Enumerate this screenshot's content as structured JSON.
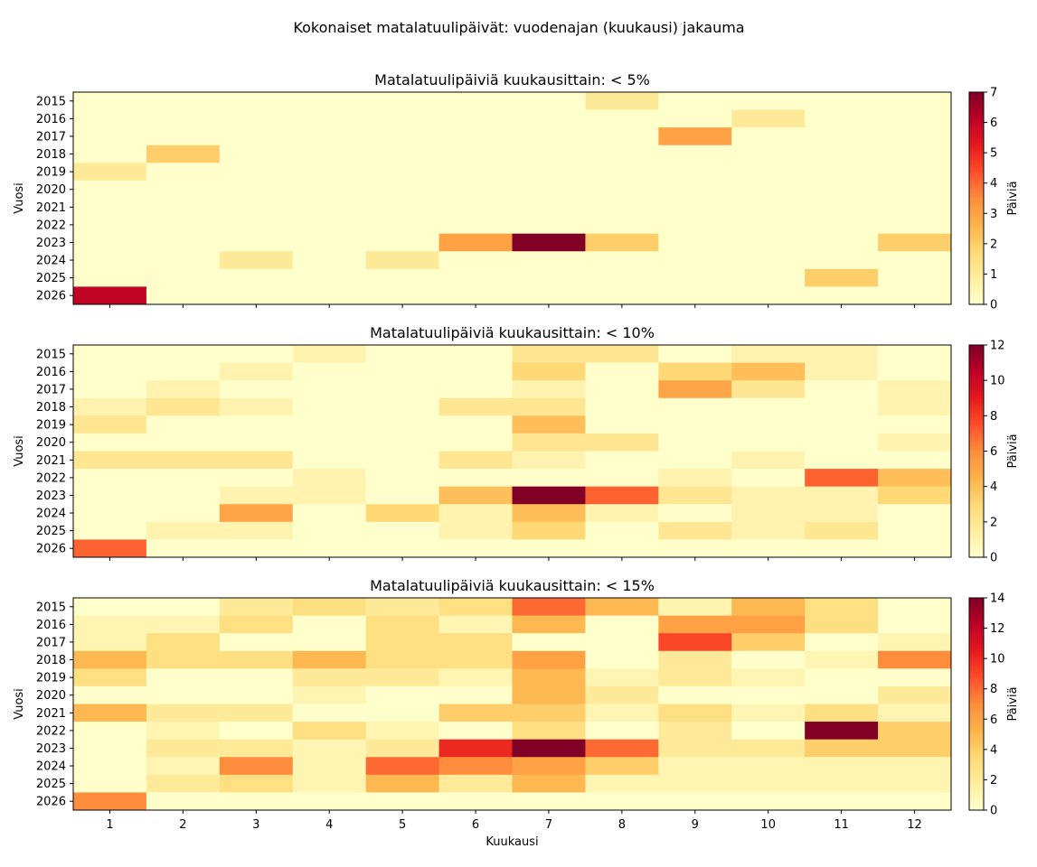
{
  "suptitle": "Kokonaiset matalatuulipäivät: vuodenajan (kuukausi) jakauma",
  "colormap": "YlOrRd",
  "colormap_stops": [
    "#ffffcc",
    "#ffeda0",
    "#fed976",
    "#feb24c",
    "#fd8d3c",
    "#fc4e2a",
    "#e31a1c",
    "#bd0026",
    "#800026"
  ],
  "chart_data": [
    {
      "type": "heatmap",
      "title": "Matalatuulipäiviä kuukausittain: < 5%",
      "ylabel": "Vuosi",
      "xlabel": "",
      "colorbar_label": "Päiviä",
      "x": [
        "1",
        "2",
        "3",
        "4",
        "5",
        "6",
        "7",
        "8",
        "9",
        "10",
        "11",
        "12"
      ],
      "y": [
        "2015",
        "2016",
        "2017",
        "2018",
        "2019",
        "2020",
        "2021",
        "2022",
        "2023",
        "2024",
        "2025",
        "2026"
      ],
      "vmin": 0,
      "vmax": 7,
      "cbar_ticks": [
        "0",
        "1",
        "2",
        "3",
        "4",
        "5",
        "6",
        "7"
      ],
      "values": [
        [
          0,
          0,
          0,
          0,
          0,
          0,
          0,
          1,
          0,
          0,
          0,
          0
        ],
        [
          0,
          0,
          0,
          0,
          0,
          0,
          0,
          0,
          0,
          1,
          0,
          0
        ],
        [
          0,
          0,
          0,
          0,
          0,
          0,
          0,
          0,
          3,
          0,
          0,
          0
        ],
        [
          0,
          2,
          0,
          0,
          0,
          0,
          0,
          0,
          0,
          0,
          0,
          0
        ],
        [
          1,
          0,
          0,
          0,
          0,
          0,
          0,
          0,
          0,
          0,
          0,
          0
        ],
        [
          0,
          0,
          0,
          0,
          0,
          0,
          0,
          0,
          0,
          0,
          0,
          0
        ],
        [
          0,
          0,
          0,
          0,
          0,
          0,
          0,
          0,
          0,
          0,
          0,
          0
        ],
        [
          0,
          0,
          0,
          0,
          0,
          0,
          0,
          0,
          0,
          0,
          0,
          0
        ],
        [
          0,
          0,
          0,
          0,
          0,
          3,
          7,
          2,
          0,
          0,
          0,
          2
        ],
        [
          0,
          0,
          1,
          0,
          1,
          0,
          0,
          0,
          0,
          0,
          0,
          0
        ],
        [
          0,
          0,
          0,
          0,
          0,
          0,
          0,
          0,
          0,
          0,
          2,
          0
        ],
        [
          6,
          0,
          0,
          0,
          0,
          0,
          0,
          0,
          0,
          0,
          0,
          0
        ]
      ]
    },
    {
      "type": "heatmap",
      "title": "Matalatuulipäiviä kuukausittain: < 10%",
      "ylabel": "Vuosi",
      "xlabel": "",
      "colorbar_label": "Päiviä",
      "x": [
        "1",
        "2",
        "3",
        "4",
        "5",
        "6",
        "7",
        "8",
        "9",
        "10",
        "11",
        "12"
      ],
      "y": [
        "2015",
        "2016",
        "2017",
        "2018",
        "2019",
        "2020",
        "2021",
        "2022",
        "2023",
        "2024",
        "2025",
        "2026"
      ],
      "vmin": 0,
      "vmax": 12,
      "cbar_ticks": [
        "0",
        "2",
        "4",
        "6",
        "8",
        "10",
        "12"
      ],
      "values": [
        [
          0,
          0,
          0,
          1,
          0,
          0,
          2,
          2,
          0,
          1,
          1,
          0
        ],
        [
          0,
          0,
          1,
          0,
          0,
          0,
          3,
          0,
          3,
          4,
          1,
          0
        ],
        [
          0,
          1,
          0,
          0,
          0,
          0,
          1,
          0,
          5,
          2,
          0,
          1
        ],
        [
          1,
          2,
          1,
          0,
          0,
          2,
          2,
          0,
          0,
          0,
          0,
          1
        ],
        [
          2,
          0,
          0,
          0,
          0,
          0,
          4,
          0,
          0,
          0,
          0,
          0
        ],
        [
          0,
          0,
          0,
          0,
          0,
          0,
          2,
          2,
          0,
          0,
          0,
          1
        ],
        [
          2,
          2,
          2,
          0,
          0,
          2,
          1,
          0,
          0,
          1,
          0,
          0
        ],
        [
          0,
          0,
          0,
          1,
          0,
          0,
          0,
          0,
          1,
          0,
          7,
          4
        ],
        [
          0,
          0,
          1,
          1,
          0,
          4,
          12,
          7,
          2,
          1,
          1,
          3
        ],
        [
          0,
          0,
          5,
          0,
          3,
          1,
          4,
          1,
          0,
          1,
          1,
          0
        ],
        [
          0,
          1,
          1,
          0,
          0,
          1,
          3,
          0,
          2,
          1,
          2,
          0
        ],
        [
          7,
          0,
          0,
          0,
          0,
          0,
          0,
          0,
          0,
          0,
          0,
          0
        ]
      ]
    },
    {
      "type": "heatmap",
      "title": "Matalatuulipäiviä kuukausittain: < 15%",
      "ylabel": "Vuosi",
      "xlabel": "Kuukausi",
      "colorbar_label": "Päiviä",
      "x": [
        "1",
        "2",
        "3",
        "4",
        "5",
        "6",
        "7",
        "8",
        "9",
        "10",
        "11",
        "12"
      ],
      "y": [
        "2015",
        "2016",
        "2017",
        "2018",
        "2019",
        "2020",
        "2021",
        "2022",
        "2023",
        "2024",
        "2025",
        "2026"
      ],
      "vmin": 0,
      "vmax": 14,
      "cbar_ticks": [
        "0",
        "2",
        "4",
        "6",
        "8",
        "10",
        "12",
        "14"
      ],
      "values": [
        [
          0,
          0,
          2,
          3,
          2,
          3,
          8,
          5,
          1,
          5,
          3,
          0
        ],
        [
          1,
          1,
          3,
          0,
          3,
          1,
          5,
          0,
          6,
          6,
          3,
          0
        ],
        [
          1,
          3,
          0,
          0,
          3,
          3,
          0,
          0,
          9,
          4,
          0,
          1
        ],
        [
          5,
          3,
          3,
          5,
          3,
          3,
          6,
          0,
          2,
          0,
          1,
          7
        ],
        [
          3,
          0,
          0,
          2,
          2,
          1,
          5,
          1,
          2,
          1,
          0,
          0
        ],
        [
          0,
          0,
          0,
          1,
          0,
          0,
          5,
          2,
          0,
          0,
          0,
          2
        ],
        [
          5,
          2,
          2,
          0,
          0,
          4,
          4,
          1,
          3,
          1,
          3,
          1
        ],
        [
          0,
          1,
          0,
          3,
          1,
          0,
          3,
          0,
          2,
          0,
          14,
          4
        ],
        [
          0,
          2,
          2,
          1,
          2,
          10,
          14,
          8,
          2,
          2,
          4,
          4
        ],
        [
          0,
          1,
          7,
          1,
          8,
          7,
          6,
          4,
          1,
          1,
          1,
          1
        ],
        [
          0,
          2,
          3,
          1,
          5,
          2,
          5,
          1,
          1,
          1,
          1,
          1
        ],
        [
          7,
          0,
          0,
          0,
          0,
          0,
          0,
          0,
          0,
          0,
          0,
          0
        ]
      ]
    }
  ]
}
